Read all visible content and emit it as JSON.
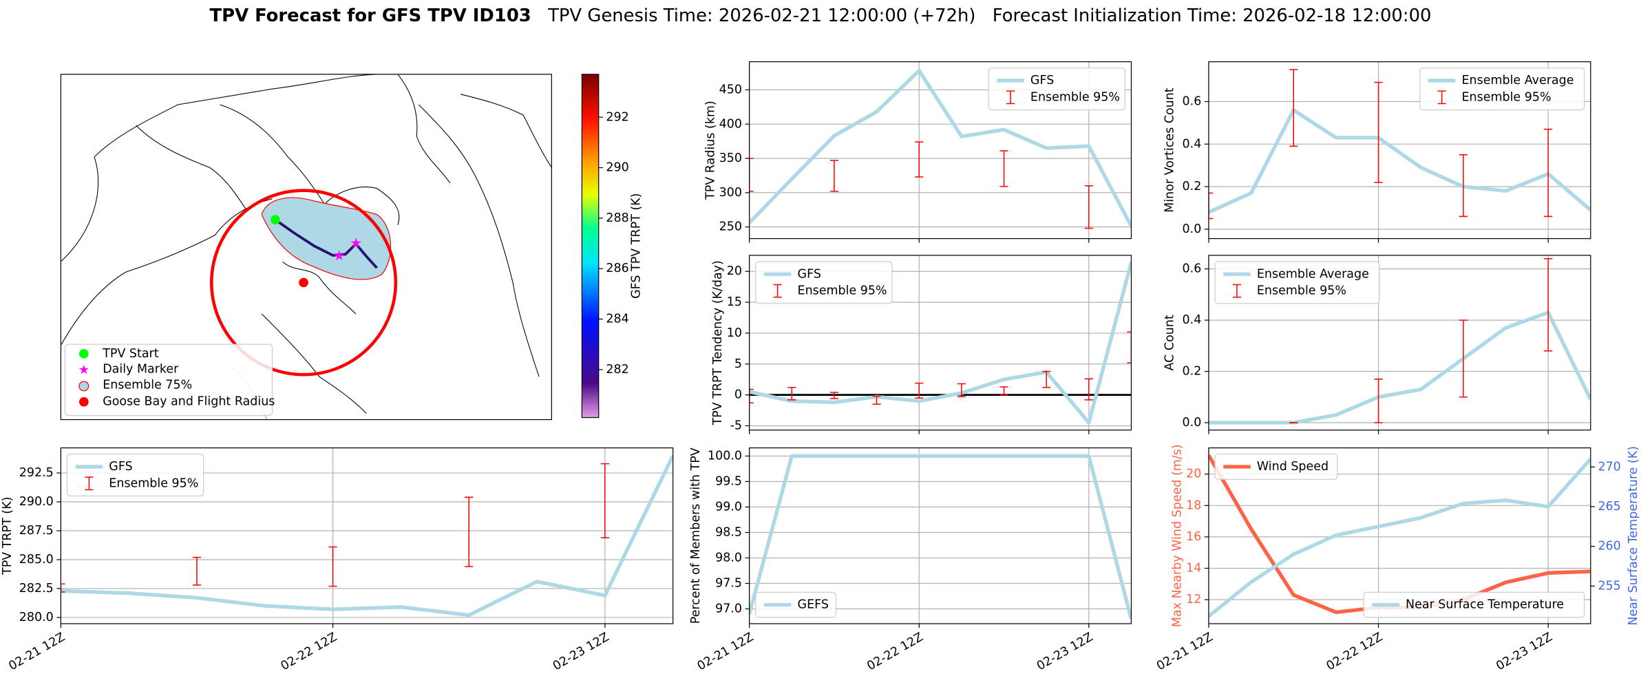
{
  "title": "TPV Forecast for GFS TPV ID103",
  "genesis": "TPV Genesis Time: 2026-02-21 12:00:00 (+72h)",
  "init": "Forecast Initialization Time: 2026-02-18 12:00:00",
  "chart_data": [
    {
      "type": "map",
      "legend": "lower left",
      "legend_entries": [
        {
          "name": "TPV Start",
          "color": "#00ff00"
        },
        {
          "name": "Daily Marker",
          "color": "#ff00ff"
        },
        {
          "name": "Ensemble 75%",
          "color": "#add8e6"
        },
        {
          "name": "Goose Bay and Flight Radius",
          "color": "red"
        }
      ],
      "colorbar": {
        "label": "GFS TPV TRPT (K)",
        "clim": [
          280.1,
          293.7
        ],
        "ticks": [
          282,
          284,
          286,
          288,
          290,
          292
        ]
      }
    },
    {
      "type": "line",
      "ylabel": "TPV Radius (km)",
      "ylim": [
        233,
        491
      ],
      "yticks": [
        250,
        300,
        350,
        400,
        450
      ],
      "grid": true,
      "legend": "upper right",
      "series": [
        {
          "name": "GFS",
          "color": "#add8e6",
          "values": [
            256,
            320,
            383,
            418,
            478,
            382,
            392,
            365,
            368,
            251
          ]
        }
      ],
      "errorbars": {
        "name": "Ensemble 95%",
        "color": "red",
        "low": [
          302,
          null,
          302,
          null,
          323,
          null,
          309,
          null,
          248,
          null
        ],
        "high": [
          350,
          null,
          347,
          null,
          374,
          null,
          361,
          null,
          310,
          null
        ]
      }
    },
    {
      "type": "line",
      "ylabel": "Minor Vortices Count",
      "ylim": [
        -0.044,
        0.787
      ],
      "yticks": [
        {
          "value": 0,
          "label": "0.0"
        },
        {
          "value": 0.2,
          "label": "0.2"
        },
        {
          "value": 0.4,
          "label": "0.4"
        },
        {
          "value": 0.6,
          "label": "0.6"
        }
      ],
      "grid": true,
      "legend": "upper right",
      "series": [
        {
          "name": "Ensemble Average",
          "color": "#add8e6",
          "values": [
            0.08,
            0.17,
            0.56,
            0.43,
            0.43,
            0.29,
            0.2,
            0.18,
            0.26,
            0.09
          ]
        }
      ],
      "errorbars": {
        "name": "Ensemble 95%",
        "color": "red",
        "low": [
          0.05,
          null,
          0.39,
          null,
          0.22,
          null,
          0.06,
          null,
          0.06,
          null
        ],
        "high": [
          0.17,
          null,
          0.75,
          null,
          0.69,
          null,
          0.35,
          null,
          0.47,
          null
        ]
      }
    },
    {
      "type": "line",
      "ylabel": "TPV TRPT Tendency (K/day)",
      "ylim": [
        -5.7,
        22.6
      ],
      "yticks": [
        -5,
        0,
        5,
        10,
        15,
        20
      ],
      "grid": true,
      "legend": "upper left",
      "hline": 0,
      "series": [
        {
          "name": "GFS",
          "color": "#add8e6",
          "values": [
            0.5,
            -1,
            -1.2,
            -0.3,
            -1,
            0.3,
            2.5,
            3.7,
            -4.5,
            21.5
          ]
        }
      ],
      "errorbars": {
        "name": "Ensemble 95%",
        "color": "red",
        "low": [
          -1.3,
          -0.8,
          -0.6,
          -1.5,
          -0.5,
          -0.3,
          0,
          1.2,
          -0.8,
          5.2
        ],
        "high": [
          0.9,
          1.2,
          0.4,
          -0.2,
          1.9,
          1.8,
          1.3,
          3.8,
          2.6,
          10.2
        ]
      }
    },
    {
      "type": "line",
      "ylabel": "AC Count",
      "ylim": [
        -0.029,
        0.653
      ],
      "yticks": [
        {
          "value": 0,
          "label": "0.0"
        },
        {
          "value": 0.2,
          "label": "0.2"
        },
        {
          "value": 0.4,
          "label": "0.4"
        },
        {
          "value": 0.6,
          "label": "0.6"
        }
      ],
      "grid": true,
      "legend": "upper left",
      "series": [
        {
          "name": "Ensemble Average",
          "color": "#add8e6",
          "values": [
            0,
            0,
            0,
            0.03,
            0.1,
            0.13,
            0.25,
            0.37,
            0.43,
            0.09
          ]
        }
      ],
      "errorbars": {
        "name": "Ensemble 95%",
        "color": "red",
        "low": [
          null,
          null,
          0,
          null,
          0,
          null,
          0.1,
          null,
          0.28,
          null
        ],
        "high": [
          null,
          null,
          0,
          null,
          0.17,
          null,
          0.4,
          null,
          0.64,
          null
        ]
      }
    },
    {
      "type": "line",
      "ylabel": "TPV TRPT (K)",
      "ylim": [
        279.46,
        294.67
      ],
      "yticks": [
        {
          "value": 280,
          "label": "280.0"
        },
        {
          "value": 282.5,
          "label": "282.5"
        },
        {
          "value": 285,
          "label": "285.0"
        },
        {
          "value": 287.5,
          "label": "287.5"
        },
        {
          "value": 290,
          "label": "290.0"
        },
        {
          "value": 292.5,
          "label": "292.5"
        }
      ],
      "grid": true,
      "legend": "upper left",
      "categories": [
        "02-21 12Z",
        null,
        null,
        null,
        "02-22 12Z",
        null,
        null,
        null,
        "02-23 12Z",
        null
      ],
      "series": [
        {
          "name": "GFS",
          "color": "#add8e6",
          "values": [
            282.3,
            282.1,
            281.7,
            281.0,
            280.7,
            280.9,
            280.2,
            283.1,
            281.9,
            294.0
          ]
        }
      ],
      "errorbars": {
        "name": "Ensemble 95%",
        "color": "red",
        "low": [
          282.2,
          null,
          282.8,
          null,
          282.7,
          null,
          284.4,
          null,
          286.9,
          null
        ],
        "high": [
          282.9,
          null,
          285.2,
          null,
          286.1,
          null,
          290.4,
          null,
          293.3,
          null
        ]
      }
    },
    {
      "type": "line",
      "ylabel": "Percent of Members with TPV",
      "ylim": [
        96.71,
        100.16
      ],
      "yticks": [
        {
          "value": 97,
          "label": "97.0"
        },
        {
          "value": 97.5,
          "label": "97.5"
        },
        {
          "value": 98,
          "label": "98.0"
        },
        {
          "value": 98.5,
          "label": "98.5"
        },
        {
          "value": 99,
          "label": "99.0"
        },
        {
          "value": 99.5,
          "label": "99.5"
        },
        {
          "value": 100,
          "label": "100.0"
        }
      ],
      "grid": true,
      "legend": "lower left",
      "categories": [
        "02-21 12Z",
        null,
        null,
        null,
        "02-22 12Z",
        null,
        null,
        null,
        "02-23 12Z",
        null
      ],
      "series": [
        {
          "name": "GEFS",
          "color": "#add8e6",
          "values": [
            96.9,
            100,
            100,
            100,
            100,
            100,
            100,
            100,
            100,
            96.8
          ]
        }
      ]
    },
    {
      "type": "line",
      "ylabel": "Max Nearby Wind Speed (m/s)",
      "ycolor": "tomato",
      "ylim": [
        10.47,
        21.67
      ],
      "yticks": [
        12,
        14,
        16,
        18,
        20
      ],
      "y2label": "Near Surface Temperature (K)",
      "y2color": "royalblue",
      "y2lim": [
        250.26,
        272.4
      ],
      "y2ticks": [
        255,
        260,
        265,
        270
      ],
      "grid": true,
      "legend": "upper left",
      "y2legend": "lower right",
      "categories": [
        "02-21 12Z",
        null,
        null,
        null,
        "02-22 12Z",
        null,
        null,
        null,
        "02-23 12Z",
        null
      ],
      "series": [
        {
          "name": "Wind Speed",
          "color": "tomato",
          "values": [
            21.2,
            16.5,
            12.3,
            11.2,
            11.5,
            11.5,
            12,
            13.1,
            13.7,
            13.8
          ]
        },
        {
          "name": "Near Surface Temperature",
          "color": "#add8e6",
          "axis": "y2",
          "values": [
            251.2,
            255.5,
            259.0,
            261.4,
            262.5,
            263.6,
            265.4,
            265.8,
            265.0,
            271.0
          ]
        }
      ]
    }
  ]
}
